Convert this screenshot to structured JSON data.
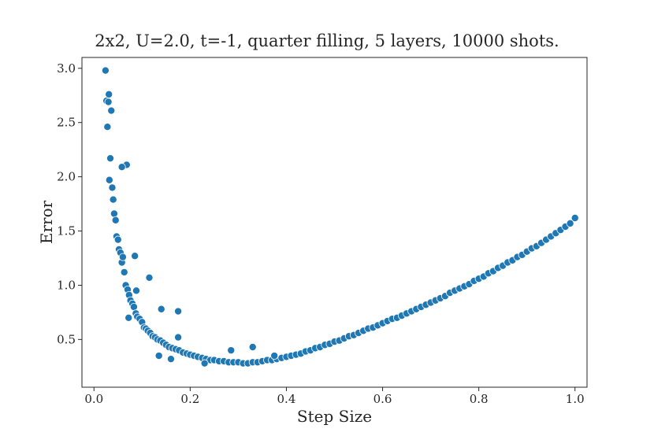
{
  "chart_data": {
    "type": "scatter",
    "title": "2x2, U=2.0, t=-1, quarter filling, 5 layers, 10000 shots.",
    "xlabel": "Step Size",
    "ylabel": "Error",
    "xlim": [
      -0.025,
      1.025
    ],
    "ylim": [
      0.06,
      3.1
    ],
    "xticks": [
      0.0,
      0.2,
      0.4,
      0.6,
      0.8,
      1.0
    ],
    "xtick_labels": [
      "0.0",
      "0.2",
      "0.4",
      "0.6",
      "0.8",
      "1.0"
    ],
    "yticks": [
      0.5,
      1.0,
      1.5,
      2.0,
      2.5,
      3.0
    ],
    "ytick_labels": [
      "0.5",
      "1.0",
      "1.5",
      "2.0",
      "2.5",
      "3.0"
    ],
    "grid": false,
    "legend": "none",
    "marker_color": "#1f77b4",
    "marker_edge_color": "#ffffff",
    "series": [
      {
        "x": [
          0.024,
          0.026,
          0.028,
          0.03,
          0.031,
          0.032,
          0.034,
          0.036,
          0.038,
          0.04,
          0.042,
          0.045,
          0.047,
          0.05,
          0.052,
          0.055,
          0.058,
          0.06,
          0.063,
          0.066,
          0.07,
          0.073,
          0.076,
          0.08,
          0.083,
          0.087,
          0.09,
          0.095,
          0.1,
          0.104,
          0.108,
          0.112,
          0.117,
          0.122,
          0.127,
          0.132,
          0.138,
          0.144,
          0.15,
          0.156,
          0.163,
          0.17,
          0.177,
          0.185,
          0.193,
          0.2,
          0.208,
          0.216,
          0.225,
          0.233,
          0.242,
          0.25,
          0.26,
          0.27,
          0.28,
          0.29,
          0.3,
          0.31,
          0.32,
          0.33,
          0.34,
          0.35,
          0.36,
          0.37,
          0.38,
          0.39,
          0.4,
          0.41,
          0.42,
          0.43,
          0.44,
          0.45,
          0.46,
          0.47,
          0.48,
          0.49,
          0.5,
          0.51,
          0.52,
          0.53,
          0.54,
          0.55,
          0.56,
          0.57,
          0.58,
          0.59,
          0.6,
          0.61,
          0.62,
          0.63,
          0.64,
          0.65,
          0.66,
          0.67,
          0.68,
          0.69,
          0.7,
          0.71,
          0.72,
          0.73,
          0.74,
          0.75,
          0.76,
          0.77,
          0.78,
          0.79,
          0.8,
          0.81,
          0.82,
          0.83,
          0.84,
          0.85,
          0.86,
          0.87,
          0.88,
          0.89,
          0.9,
          0.91,
          0.92,
          0.93,
          0.94,
          0.95,
          0.96,
          0.97,
          0.98,
          0.99,
          1.0,
          0.068,
          0.085,
          0.115,
          0.14,
          0.175,
          0.135,
          0.16,
          0.23,
          0.175,
          0.285,
          0.375,
          0.33,
          0.058,
          0.072,
          0.088
        ],
        "y": [
          2.98,
          2.7,
          2.46,
          2.69,
          2.76,
          1.97,
          2.17,
          2.61,
          1.9,
          1.79,
          1.66,
          1.6,
          1.45,
          1.42,
          1.33,
          1.3,
          1.21,
          1.26,
          1.12,
          1.0,
          0.96,
          0.91,
          0.86,
          0.83,
          0.8,
          0.74,
          0.71,
          0.69,
          0.66,
          0.61,
          0.6,
          0.58,
          0.56,
          0.53,
          0.52,
          0.5,
          0.49,
          0.47,
          0.45,
          0.43,
          0.42,
          0.41,
          0.4,
          0.38,
          0.37,
          0.36,
          0.35,
          0.34,
          0.33,
          0.32,
          0.31,
          0.31,
          0.3,
          0.3,
          0.29,
          0.29,
          0.29,
          0.28,
          0.28,
          0.29,
          0.29,
          0.3,
          0.31,
          0.31,
          0.32,
          0.33,
          0.34,
          0.35,
          0.36,
          0.37,
          0.39,
          0.4,
          0.42,
          0.43,
          0.45,
          0.46,
          0.48,
          0.49,
          0.51,
          0.53,
          0.54,
          0.56,
          0.58,
          0.6,
          0.61,
          0.63,
          0.65,
          0.67,
          0.69,
          0.7,
          0.72,
          0.74,
          0.76,
          0.78,
          0.8,
          0.82,
          0.84,
          0.86,
          0.88,
          0.9,
          0.93,
          0.95,
          0.97,
          0.99,
          1.01,
          1.04,
          1.06,
          1.08,
          1.11,
          1.13,
          1.16,
          1.18,
          1.21,
          1.23,
          1.26,
          1.28,
          1.31,
          1.34,
          1.36,
          1.39,
          1.42,
          1.45,
          1.48,
          1.51,
          1.54,
          1.57,
          1.62,
          2.11,
          1.27,
          1.07,
          0.78,
          0.76,
          0.35,
          0.32,
          0.28,
          0.52,
          0.4,
          0.35,
          0.43,
          2.09,
          0.7,
          0.95
        ]
      }
    ]
  }
}
